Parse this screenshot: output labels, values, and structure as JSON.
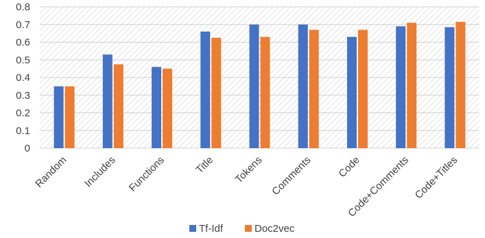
{
  "chart_data": {
    "type": "bar",
    "categories": [
      "Random",
      "Includes",
      "Functions",
      "Title",
      "Tokens",
      "Comments",
      "Code",
      "Code+Comments",
      "Code+Titles"
    ],
    "series": [
      {
        "name": "Tf-Idf",
        "color": "#4472C4",
        "values": [
          0.35,
          0.53,
          0.46,
          0.66,
          0.7,
          0.7,
          0.63,
          0.69,
          0.685
        ]
      },
      {
        "name": "Doc2vec",
        "color": "#ED7D31",
        "values": [
          0.35,
          0.475,
          0.45,
          0.625,
          0.63,
          0.67,
          0.67,
          0.71,
          0.715
        ]
      }
    ],
    "ylim": [
      0,
      0.8
    ],
    "yticks": [
      "0",
      "0.1",
      "0.2",
      "0.3",
      "0.4",
      "0.5",
      "0.6",
      "0.7",
      "0.8"
    ],
    "grid": true,
    "legend_position": "bottom"
  }
}
